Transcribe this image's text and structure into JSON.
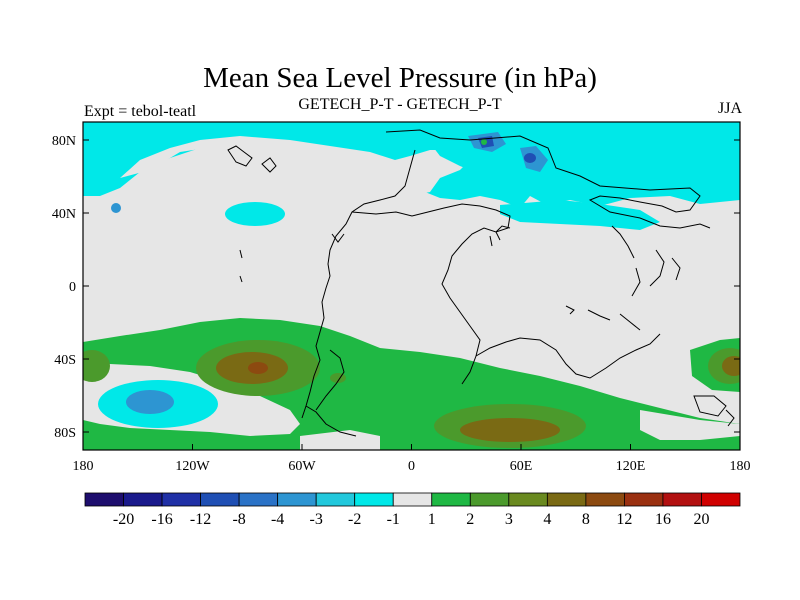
{
  "title": "Mean Sea Level Pressure (in hPa)",
  "subtitle_left": "Expt = tebol-teatl",
  "subtitle_center": "GETECH_P-T - GETECH_P-T",
  "subtitle_right": "JJA",
  "x_ticks": [
    "180",
    "120W",
    "60W",
    "0",
    "60E",
    "120E",
    "180"
  ],
  "y_ticks": [
    "80N",
    "40N",
    "0",
    "40S",
    "80S"
  ],
  "colorbar": {
    "colors": [
      "#1e0e6e",
      "#1a1a8c",
      "#1f30a6",
      "#1f4fb4",
      "#2a72c6",
      "#2d95d2",
      "#22c8dc",
      "#00e8e8",
      "#e6e6e6",
      "#1fb844",
      "#4b9a2c",
      "#6a8a20",
      "#7a6a14",
      "#8c4a10",
      "#9a3010",
      "#b21010",
      "#d00000"
    ],
    "labels": [
      "-20",
      "-16",
      "-12",
      "-8",
      "-4",
      "-3",
      "-2",
      "-1",
      "1",
      "2",
      "3",
      "4",
      "8",
      "12",
      "16",
      "20"
    ]
  },
  "legend_colors": {
    "neutral": "#e6e6e6",
    "cyan": "#00e8e8",
    "light_blue": "#2d95d2",
    "blue": "#1f4fb4",
    "dark_blue": "#1a1a8c",
    "green": "#1fb844",
    "olive": "#4b9a2c",
    "brown": "#7a6a14",
    "dark_brown": "#8c4a10"
  }
}
